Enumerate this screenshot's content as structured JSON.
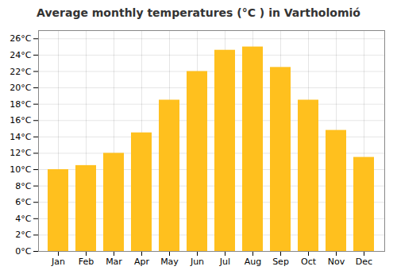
{
  "chart_data": {
    "type": "bar",
    "title": "Average monthly temperatures (°C ) in Vartholomió",
    "categories": [
      "Jan",
      "Feb",
      "Mar",
      "Apr",
      "May",
      "Jun",
      "Jul",
      "Aug",
      "Sep",
      "Oct",
      "Nov",
      "Dec"
    ],
    "values": [
      10.0,
      10.5,
      12.0,
      14.5,
      18.5,
      22.0,
      24.6,
      25.0,
      22.5,
      18.5,
      14.8,
      11.5
    ],
    "color": "#FFC01E",
    "ylim": [
      0,
      27
    ],
    "yticks": [
      {
        "value": 0,
        "label": "0°C"
      },
      {
        "value": 2,
        "label": "2°C"
      },
      {
        "value": 4,
        "label": "4°C"
      },
      {
        "value": 6,
        "label": "6°C"
      },
      {
        "value": 8,
        "label": "8°C"
      },
      {
        "value": 10,
        "label": "10°C"
      },
      {
        "value": 12,
        "label": "12°C"
      },
      {
        "value": 14,
        "label": "14°C"
      },
      {
        "value": 16,
        "label": "16°C"
      },
      {
        "value": 18,
        "label": "18°C"
      },
      {
        "value": 20,
        "label": "20°C"
      },
      {
        "value": 22,
        "label": "22°C"
      },
      {
        "value": 24,
        "label": "24°C"
      },
      {
        "value": 26,
        "label": "26°C"
      }
    ],
    "grid": true
  }
}
